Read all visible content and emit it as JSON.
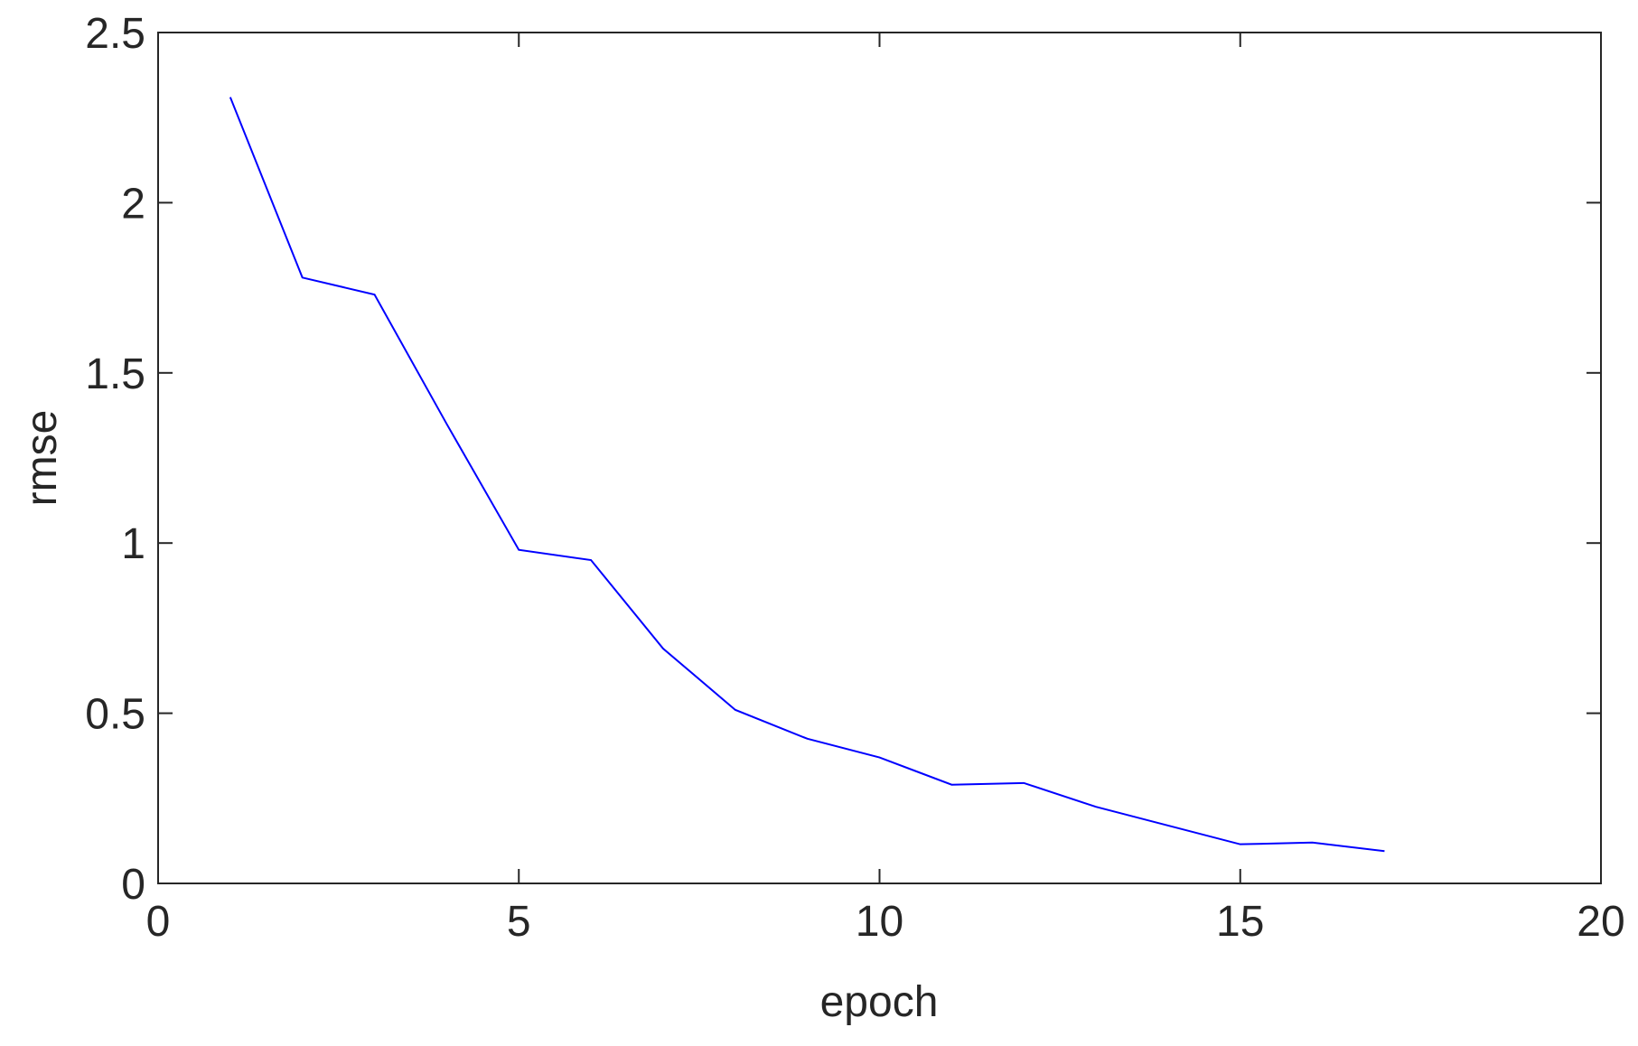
{
  "chart_data": {
    "type": "line",
    "xlabel": "epoch",
    "ylabel": "rmse",
    "x": [
      1,
      2,
      3,
      4,
      5,
      6,
      7,
      8,
      9,
      10,
      11,
      12,
      13,
      14,
      15,
      16,
      17
    ],
    "series": [
      {
        "color": "#0000ff",
        "values": [
          2.31,
          1.78,
          1.73,
          1.35,
          0.98,
          0.95,
          0.69,
          0.51,
          0.425,
          0.37,
          0.29,
          0.295,
          0.225,
          0.17,
          0.115,
          0.12,
          0.095
        ]
      }
    ],
    "xlim": [
      0,
      20
    ],
    "xticks": [
      0,
      5,
      10,
      15,
      20
    ],
    "ylim": [
      0,
      2.5
    ],
    "yticks": [
      0,
      0.5,
      1,
      1.5,
      2,
      2.5
    ]
  }
}
